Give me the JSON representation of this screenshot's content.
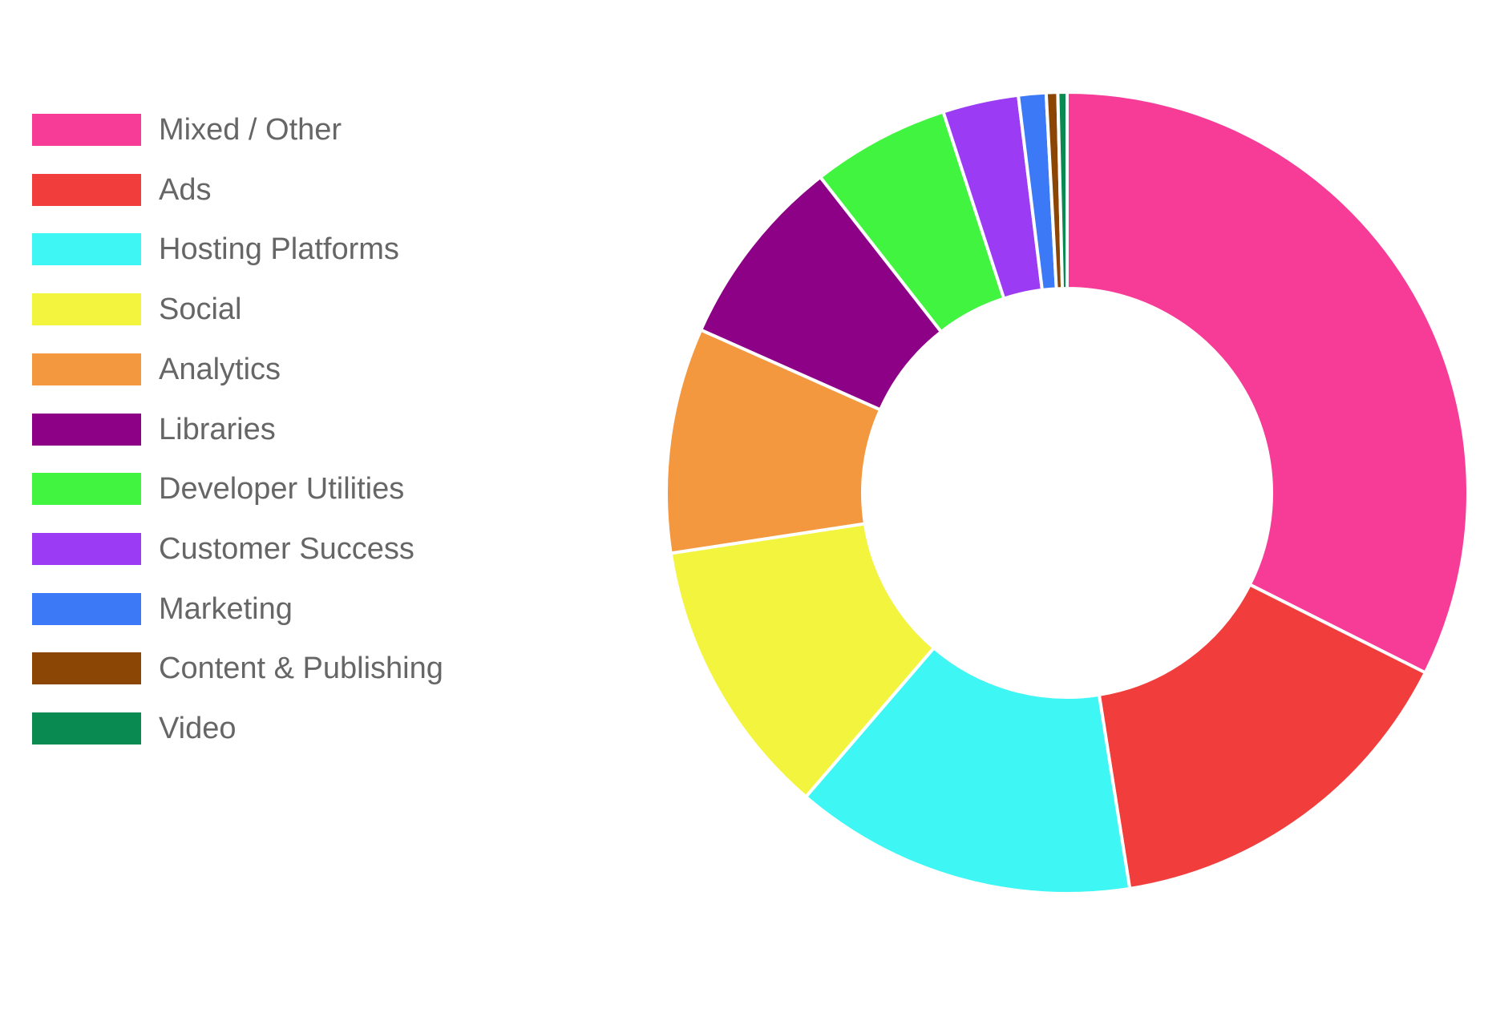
{
  "chart_data": {
    "type": "pie",
    "variant": "doughnut",
    "legend_position": "left",
    "categories": [
      "Mixed / Other",
      "Ads",
      "Hosting Platforms",
      "Social",
      "Analytics",
      "Libraries",
      "Developer Utilities",
      "Customer Success",
      "Marketing",
      "Content & Publishing",
      "Video"
    ],
    "values": [
      35.0,
      16.3,
      14.9,
      12.2,
      9.8,
      8.4,
      6.0,
      3.3,
      1.2,
      0.5,
      0.4
    ],
    "colors": [
      "#f63c97",
      "#f13d3c",
      "#3ef6f4",
      "#f3f43e",
      "#f49840",
      "#8d0186",
      "#40f43f",
      "#9b3cf4",
      "#3b79f6",
      "#8b4606",
      "#088a50"
    ]
  }
}
